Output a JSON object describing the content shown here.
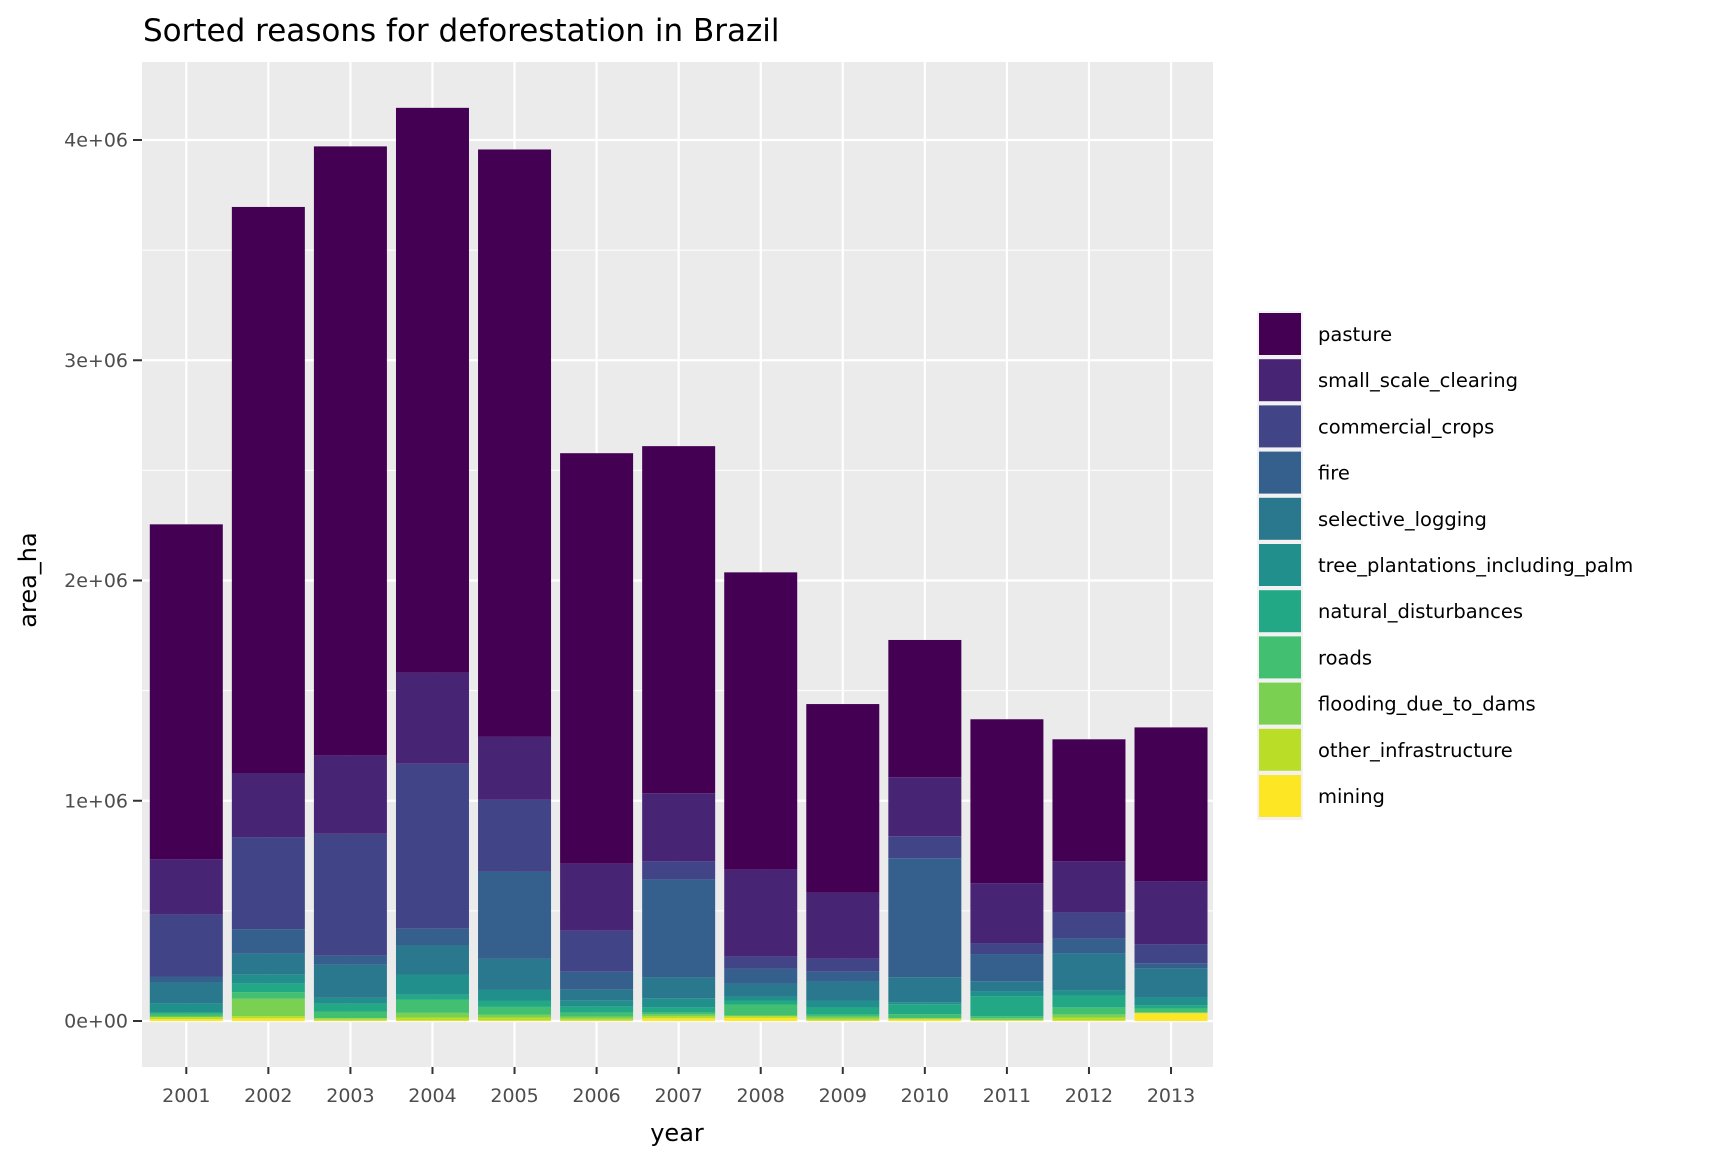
{
  "chart_data": {
    "type": "bar",
    "stacked": true,
    "title": "Sorted reasons for deforestation in Brazil",
    "xlabel": "year",
    "ylabel": "area_ha",
    "ylim": [
      0,
      4300000
    ],
    "yticks": [
      0,
      1000000,
      2000000,
      3000000,
      4000000
    ],
    "ytick_labels": [
      "0e+00",
      "1e+06",
      "2e+06",
      "3e+06",
      "4e+06"
    ],
    "grid": true,
    "legend_position": "right",
    "categories": [
      "2001",
      "2002",
      "2003",
      "2004",
      "2005",
      "2006",
      "2007",
      "2008",
      "2009",
      "2010",
      "2011",
      "2012",
      "2013"
    ],
    "series": [
      {
        "name": "mining",
        "color": "#FDE725",
        "values": [
          9000,
          12000,
          2000,
          2000,
          2000,
          2000,
          12000,
          14000,
          2000,
          6000,
          2000,
          2000,
          35000
        ]
      },
      {
        "name": "other_infrastructure",
        "color": "#BADE28",
        "values": [
          9000,
          10000,
          9000,
          14000,
          14000,
          9000,
          9000,
          9000,
          9000,
          5000,
          2000,
          14000,
          2000
        ]
      },
      {
        "name": "flooding_due_to_dams",
        "color": "#7AD151",
        "values": [
          2000,
          79000,
          2000,
          21000,
          12000,
          9000,
          9000,
          2000,
          9000,
          2000,
          9000,
          14000,
          2000
        ]
      },
      {
        "name": "roads",
        "color": "#43BF71",
        "values": [
          14000,
          30000,
          30000,
          59000,
          36000,
          18000,
          9000,
          50000,
          9000,
          18000,
          9000,
          32000,
          18000
        ]
      },
      {
        "name": "natural_disturbances",
        "color": "#22A884",
        "values": [
          5000,
          38000,
          35000,
          23000,
          27000,
          27000,
          23000,
          18000,
          32000,
          45000,
          91000,
          54000,
          14000
        ]
      },
      {
        "name": "tree_plantations_including_palm",
        "color": "#21908C",
        "values": [
          41000,
          41000,
          27000,
          92000,
          50000,
          27000,
          41000,
          18000,
          32000,
          9000,
          23000,
          23000,
          36000
        ]
      },
      {
        "name": "selective_logging",
        "color": "#2A788E",
        "values": [
          95000,
          95000,
          150000,
          132000,
          141000,
          50000,
          95000,
          59000,
          86000,
          114000,
          45000,
          168000,
          132000
        ]
      },
      {
        "name": "fire",
        "color": "#355F8D",
        "values": [
          27000,
          112000,
          41000,
          76000,
          395000,
          82000,
          445000,
          68000,
          45000,
          540000,
          123000,
          68000,
          23000
        ]
      },
      {
        "name": "commercial_crops",
        "color": "#414487",
        "values": [
          282000,
          418000,
          554000,
          749000,
          327000,
          186000,
          82000,
          54000,
          59000,
          100000,
          50000,
          118000,
          86000
        ]
      },
      {
        "name": "small_scale_clearing",
        "color": "#482475",
        "values": [
          250000,
          291000,
          356000,
          413000,
          286000,
          304000,
          309000,
          395000,
          300000,
          268000,
          272000,
          232000,
          286000
        ]
      },
      {
        "name": "pasture",
        "color": "#440154",
        "values": [
          1521000,
          2570000,
          2765000,
          2565000,
          2667000,
          1864000,
          1576000,
          1350000,
          856000,
          623000,
          744000,
          554000,
          699000
        ]
      }
    ],
    "legend": [
      {
        "name": "pasture",
        "color": "#440154"
      },
      {
        "name": "small_scale_clearing",
        "color": "#482475"
      },
      {
        "name": "commercial_crops",
        "color": "#414487"
      },
      {
        "name": "fire",
        "color": "#355F8D"
      },
      {
        "name": "selective_logging",
        "color": "#2A788E"
      },
      {
        "name": "tree_plantations_including_palm",
        "color": "#21908C"
      },
      {
        "name": "natural_disturbances",
        "color": "#22A884"
      },
      {
        "name": "roads",
        "color": "#43BF71"
      },
      {
        "name": "flooding_due_to_dams",
        "color": "#7AD151"
      },
      {
        "name": "other_infrastructure",
        "color": "#BADE28"
      },
      {
        "name": "mining",
        "color": "#FDE725"
      }
    ]
  }
}
